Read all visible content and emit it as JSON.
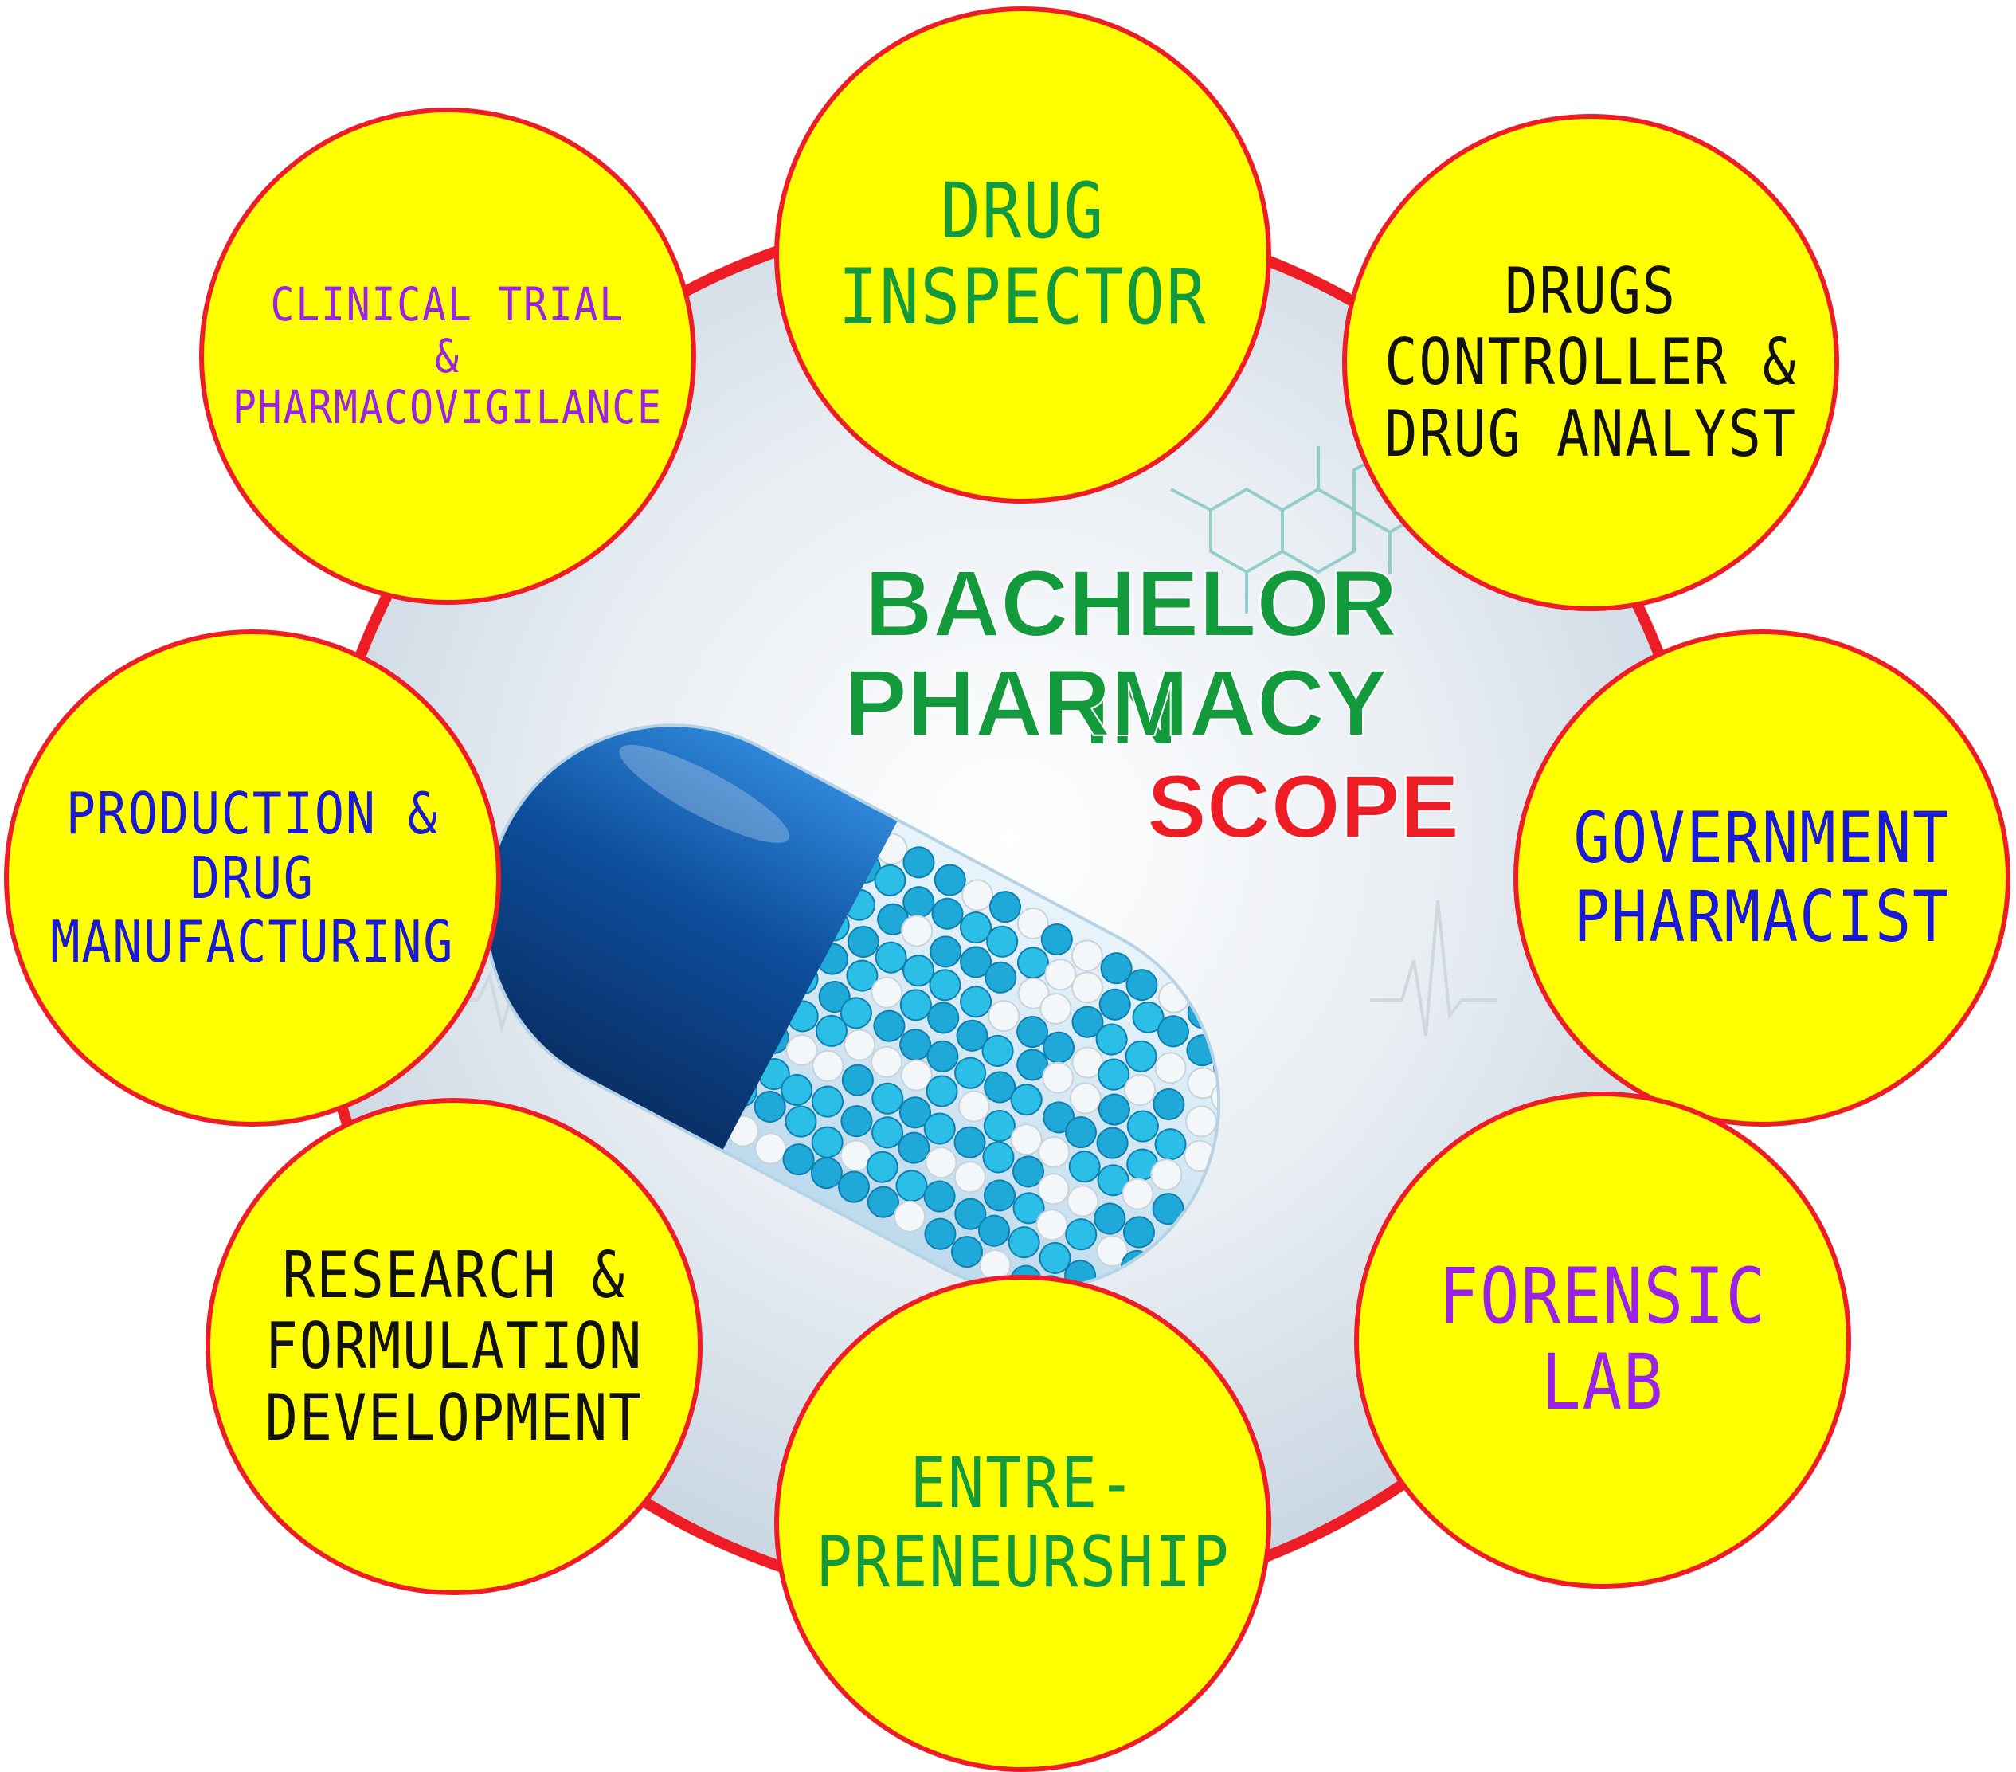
{
  "center": {
    "title_line1": "BACHELOR IN",
    "title_line2": "PHARMACY",
    "subtitle": "SCOPE"
  },
  "colors": {
    "bubble_fill": "#ffff00",
    "ring": "#ee1c25",
    "green": "#129a3c",
    "black": "#111111",
    "blue": "#1a1ad6",
    "purple": "#9a22e6",
    "capsule_blue": "#1d5fb0"
  },
  "bubbles": {
    "drug_inspector": {
      "text": "DRUG\nINSPECTOR",
      "color": "#129a3c"
    },
    "drugs_controller": {
      "text": "DRUGS\nCONTROLLER &\nDRUG ANALYST",
      "color": "#111111"
    },
    "government_pharmacist": {
      "text": "GOVERNMENT\nPHARMACIST",
      "color": "#1a1ad6"
    },
    "forensic_lab": {
      "text": "FORENSIC\nLAB",
      "color": "#9a22e6"
    },
    "entrepreneurship": {
      "text": "ENTRE-\nPRENEURSHIP",
      "color": "#129a3c"
    },
    "research": {
      "text": "RESEARCH &\nFORMULATION\nDEVELOPMENT",
      "color": "#111111"
    },
    "production": {
      "text": "PRODUCTION &\nDRUG\nMANUFACTURING",
      "color": "#1a1ad6"
    },
    "clinical_trial": {
      "text": "CLINICAL TRIAL\n&\nPHARMACOVIGILANCE",
      "color": "#9a22e6"
    }
  }
}
